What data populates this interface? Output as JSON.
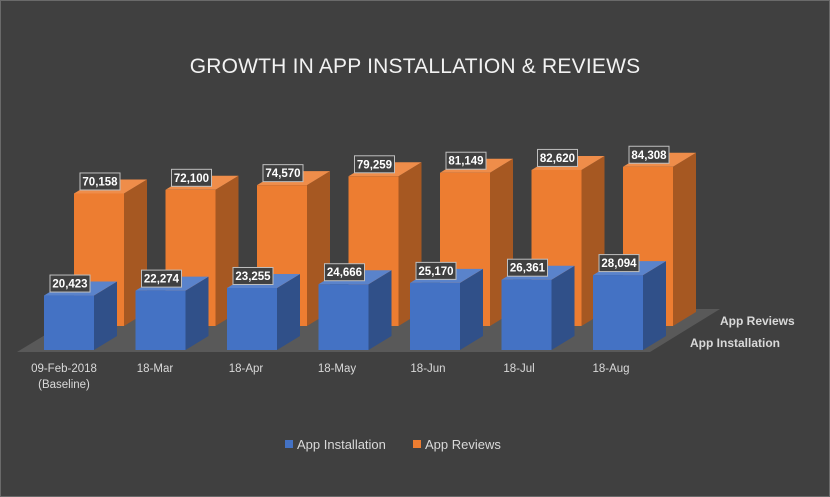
{
  "chart_data": {
    "type": "bar",
    "title": "GROWTH IN APP INSTALLATION & REVIEWS",
    "categories": [
      "09-Feb-2018",
      "18-Mar",
      "18-Apr",
      "18-May",
      "18-Jun",
      "18-Jul",
      "18-Aug"
    ],
    "category_sublabels": [
      "(Baseline)",
      "",
      "",
      "",
      "",
      "",
      ""
    ],
    "series": [
      {
        "name": "App Installation",
        "color": "#4472c4",
        "values": [
          20423,
          22274,
          23255,
          24666,
          25170,
          26361,
          28094
        ],
        "labels": [
          "20,423",
          "22,274",
          "23,255",
          "24,666",
          "25,170",
          "26,361",
          "28,094"
        ]
      },
      {
        "name": "App Reviews",
        "color": "#ed7d31",
        "values": [
          70158,
          72100,
          74570,
          79259,
          81149,
          82620,
          84308
        ],
        "labels": [
          "70,158",
          "72,100",
          "74,570",
          "79,259",
          "81,149",
          "82,620",
          "84,308"
        ]
      }
    ],
    "depth_axis_labels": [
      "App Reviews",
      "App Installation"
    ],
    "legend": [
      "App Installation",
      "App Reviews"
    ],
    "legend_position": "bottom",
    "grid": false,
    "style": "3d-column",
    "ylim": [
      0,
      90000
    ]
  }
}
